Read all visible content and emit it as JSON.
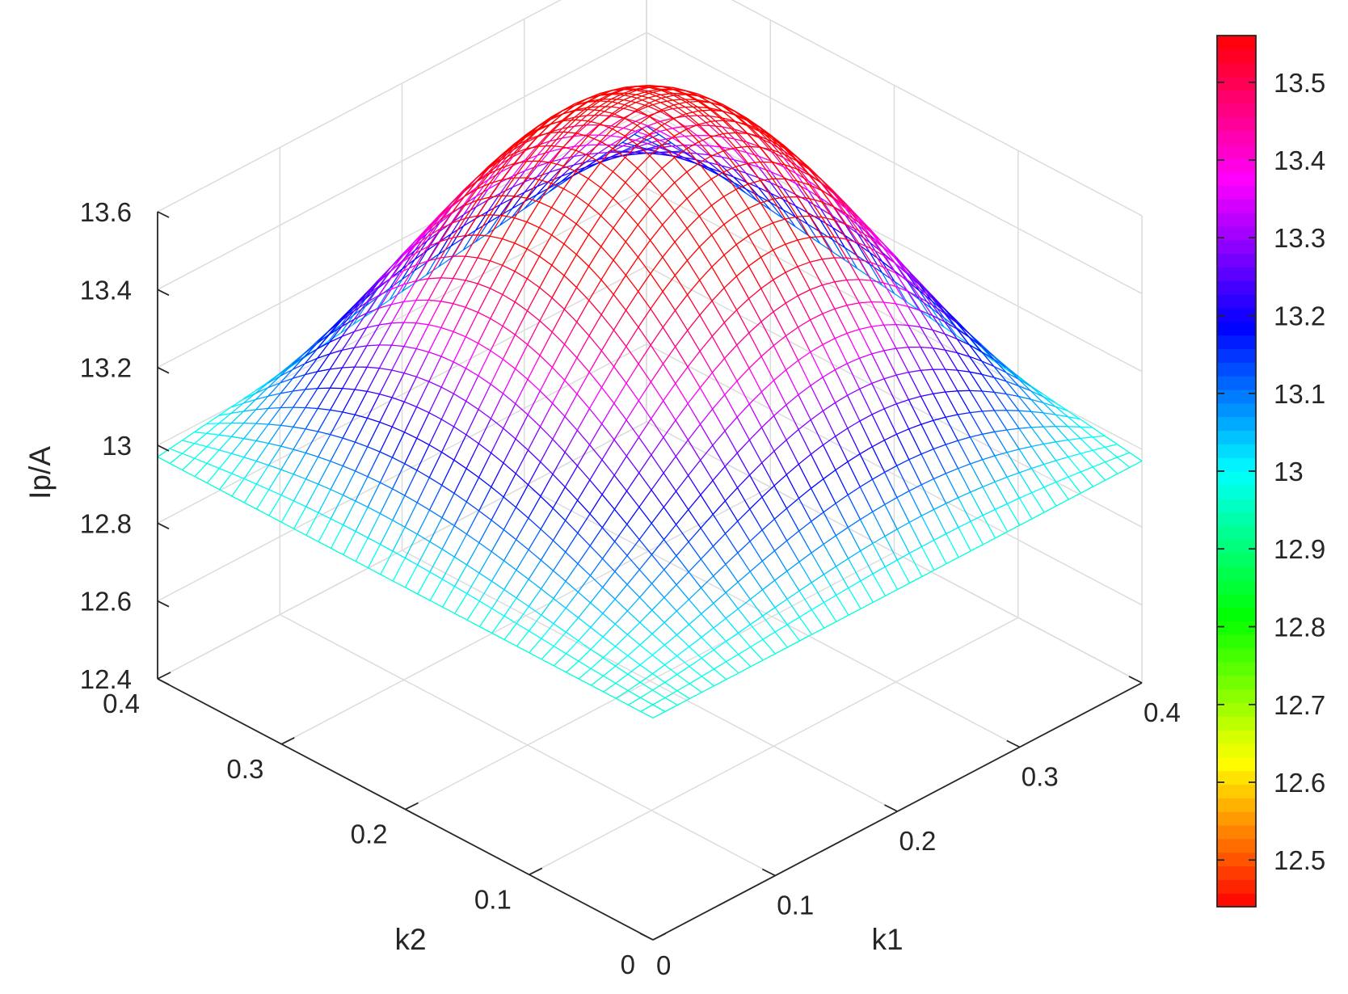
{
  "chart_data": {
    "type": "surface",
    "style": "colored wireframe mesh (MATLAB mesh, hsv colormap)",
    "title": "",
    "xlabel": "k1",
    "ylabel": "k2",
    "zlabel": "Ip/A",
    "xlim": [
      0,
      0.4
    ],
    "ylim": [
      0,
      0.4
    ],
    "zlim": [
      12.4,
      13.6
    ],
    "x_ticks": [
      "0",
      "0.1",
      "0.2",
      "0.3",
      "0.4"
    ],
    "y_ticks": [
      "0",
      "0.1",
      "0.2",
      "0.3",
      "0.4"
    ],
    "z_ticks": [
      "12.4",
      "12.6",
      "12.8",
      "13",
      "13.2",
      "13.4",
      "13.6"
    ],
    "grid": true,
    "colormap": "hsv",
    "colorbar": {
      "placement": "right",
      "range": [
        12.44,
        13.56
      ],
      "ticks": [
        "12.5",
        "12.6",
        "12.7",
        "12.8",
        "12.9",
        "13",
        "13.1",
        "13.2",
        "13.3",
        "13.4",
        "13.5"
      ]
    },
    "surface": {
      "grid_points_per_axis": 41,
      "z_at_k1_0_k2_0": 12.97,
      "z_at_k1_0.4_k2_0": 12.97,
      "z_at_k1_0_k2_0.4": 12.97,
      "z_at_k1_0.4_k2_0.4": 13.16,
      "z_min_observed": 12.44,
      "z_max_observed": 13.56,
      "corner_samples": [
        {
          "k1": 0,
          "k2": 0,
          "ip": 12.97
        },
        {
          "k1": 0.4,
          "k2": 0,
          "ip": 12.97
        },
        {
          "k1": 0,
          "k2": 0.4,
          "ip": 12.97
        },
        {
          "k1": 0.4,
          "k2": 0.4,
          "ip": 13.16
        }
      ]
    }
  }
}
